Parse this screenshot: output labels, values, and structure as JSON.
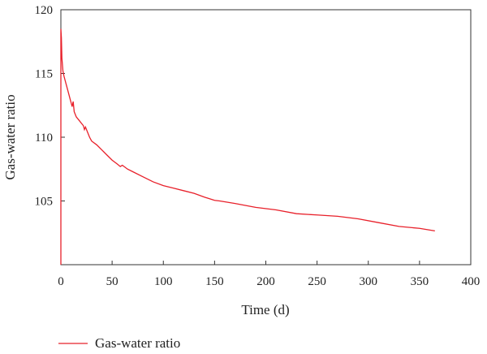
{
  "chart_data": {
    "type": "line",
    "xlabel": "Time (d)",
    "ylabel": "Gas-water ratio",
    "xlim": [
      0,
      400
    ],
    "ylim": [
      100,
      120
    ],
    "xticks": [
      0,
      50,
      100,
      150,
      200,
      250,
      300,
      350,
      400
    ],
    "yticks": [
      105,
      110,
      115,
      120
    ],
    "grid": false,
    "legend_position": "bottom-left",
    "colors": {
      "series": "#e8202a",
      "axis": "#333333"
    },
    "series": [
      {
        "name": "Gas-water ratio",
        "points": [
          [
            0,
            100.0
          ],
          [
            0,
            118.5
          ],
          [
            0.5,
            117.8
          ],
          [
            1,
            116.2
          ],
          [
            2,
            115.2
          ],
          [
            3,
            114.8
          ],
          [
            5,
            114.2
          ],
          [
            7,
            113.6
          ],
          [
            9,
            113.0
          ],
          [
            11,
            112.4
          ],
          [
            12,
            112.8
          ],
          [
            13,
            112.0
          ],
          [
            15,
            111.6
          ],
          [
            18,
            111.3
          ],
          [
            20,
            111.1
          ],
          [
            22,
            110.9
          ],
          [
            23,
            110.6
          ],
          [
            24,
            110.8
          ],
          [
            26,
            110.4
          ],
          [
            28,
            110.0
          ],
          [
            30,
            109.7
          ],
          [
            35,
            109.4
          ],
          [
            40,
            109.0
          ],
          [
            45,
            108.6
          ],
          [
            50,
            108.2
          ],
          [
            55,
            107.9
          ],
          [
            58,
            107.7
          ],
          [
            60,
            107.8
          ],
          [
            65,
            107.5
          ],
          [
            70,
            107.3
          ],
          [
            80,
            106.9
          ],
          [
            90,
            106.5
          ],
          [
            100,
            106.2
          ],
          [
            110,
            106.0
          ],
          [
            120,
            105.8
          ],
          [
            130,
            105.6
          ],
          [
            140,
            105.3
          ],
          [
            150,
            105.05
          ],
          [
            155,
            105.0
          ],
          [
            170,
            104.8
          ],
          [
            190,
            104.5
          ],
          [
            210,
            104.3
          ],
          [
            230,
            104.0
          ],
          [
            250,
            103.9
          ],
          [
            270,
            103.8
          ],
          [
            290,
            103.6
          ],
          [
            310,
            103.3
          ],
          [
            330,
            103.0
          ],
          [
            350,
            102.85
          ],
          [
            365,
            102.65
          ]
        ]
      }
    ]
  }
}
